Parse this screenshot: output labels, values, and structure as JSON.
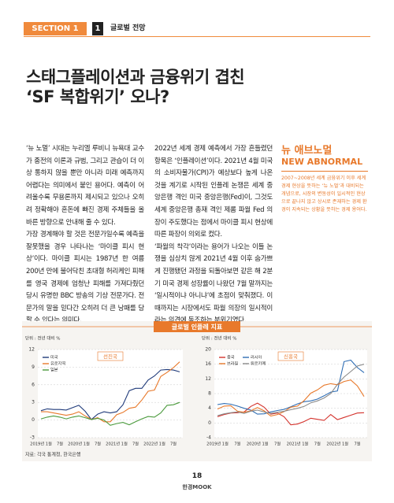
{
  "header": {
    "section": "SECTION 1",
    "number": "1",
    "label": "글로벌 전망"
  },
  "title": [
    "스태그플레이션과 금융위기 겹친",
    "‘SF 복합위기’ 오나?"
  ],
  "body": {
    "column1": [
      "‘뉴 노멀’ 시대는 누리엘 루비니 뉴욕대 교수가 종전의 이론과 규범, 그리고 관습이 더 이상 통하지 않을 뿐만 아니라 미래 예측까지 어렵다는 의미에서 붙인 용어다. 예측이 어려울수록 무용론까지 제시되고 있으나 오히려 정확해야 혼돈에 빠진 경제 주체들을 올바른 방향으로 안내해 줄 수 있다.",
      "가장 경계해야 할 것은 전문가일수록 예측을 잘못했을 경우 나타나는 ‘마이클 피시 현상’이다. 마이클 피시는 1987년 한 여름 200년 만에 불어닥친 초대형 허리케인 피해를 영국 경제에 엄청난 피해를 가져다줬던 당시 유명한 BBC 방송의 기상 전문가다. 전문가의 말을 믿다간 오히려 더 큰 낭패를 당할 수 있다는 의미다."
    ],
    "column2": [
      "2022년 세계 경제 예측에서 가장 흔들렸던 항목은 ‘인플레이션’이다. 2021년 4월 미국의 소비자물가(CPI)가 예상보다 높게 나온 것을 계기로 시작된 인플레 논쟁은 세계 중앙은행 격인 미국 중앙은행(Fed)이, 그것도 세계 중앙은행 총재 격인 제롬 파월 Fed 의장이 주도했다는 점에서 마이클 피시 현상에 따른 파장이 의외로 컸다.",
      "‘파월의 착각’이라는 용어가 나오는 이들 논쟁을 심상치 않게 2021년 4월 이후 숨가쁘게 진행됐던 과정을 되돌아보면 같은 해 2분기 미국 경제 성장률이 나왔던 7월 말까지는 ‘일시적이냐 아니냐’에 초점이 맞춰졌다. 이때까지는 시장에서도 파월 의장의 일시적이라는 의견에 동조하는 분위기였다."
    ]
  },
  "sidebar": {
    "title": "뉴 애브노멀",
    "subtitle": "NEW ABNORMAL",
    "text": "2007~2008년 세계 금융위기 이후 세계경제 현상을 뜻하는 ‘뉴 노멀’과 대비되는 개념으로, 시장의 변동성이 일시적인 현상으로 끝나지 않고 상시로 존재하는 경제 환경이 지속되는 상황을 뜻하는 경제 용어다."
  },
  "figure": {
    "title": "글로벌 인플레 지표",
    "source": "자료: 각국 통계청, 한국은행"
  },
  "chart_data": [
    {
      "type": "line",
      "title": "선진국",
      "unit": "단위 : 전년 대비 %",
      "categories": [
        "2019년 1월",
        null,
        null,
        "7월",
        null,
        null,
        "2020년 1월",
        null,
        null,
        "7월",
        null,
        null,
        "2021년 1월",
        null,
        null,
        "7월",
        null,
        null,
        "2022년 1월",
        null,
        null,
        "7월",
        null
      ],
      "ylim": [
        -3,
        12
      ],
      "yticks": [
        12,
        9,
        6,
        3,
        0,
        -3
      ],
      "grid": true,
      "legend": "upper left",
      "series": [
        {
          "name": "미국",
          "color": "#1f3a7a",
          "values": [
            1.6,
            1.9,
            1.8,
            1.8,
            1.7,
            2.1,
            2.5,
            1.5,
            0.1,
            1.0,
            1.4,
            1.2,
            1.4,
            2.6,
            5.0,
            5.4,
            5.4,
            6.8,
            7.5,
            8.5,
            8.6,
            8.5,
            8.2
          ]
        },
        {
          "name": "유로지역",
          "color": "#e8792b",
          "values": [
            1.4,
            1.4,
            1.2,
            1.0,
            0.8,
            1.0,
            1.4,
            0.7,
            0.1,
            0.4,
            -0.3,
            -0.3,
            0.9,
            1.3,
            2.0,
            2.2,
            3.4,
            4.9,
            5.1,
            7.4,
            8.1,
            8.9,
            9.9
          ]
        },
        {
          "name": "일본",
          "color": "#4a9a3c",
          "values": [
            0.2,
            0.5,
            0.7,
            0.5,
            0.2,
            0.5,
            0.7,
            0.4,
            0.1,
            0.3,
            0.0,
            -0.9,
            -0.6,
            -0.4,
            -0.8,
            -0.3,
            0.2,
            0.6,
            0.5,
            1.2,
            2.5,
            2.6,
            3.0
          ]
        }
      ]
    },
    {
      "type": "line",
      "title": "신흥국",
      "unit": "단위 : 전년 대비 %",
      "categories": [
        "2019년 1월",
        null,
        null,
        "7월",
        null,
        null,
        "2020년 1월",
        null,
        null,
        "7월",
        null,
        null,
        "2021년 1월",
        null,
        null,
        "7월",
        null,
        null,
        "2022년 1월",
        null,
        null,
        "7월",
        null
      ],
      "ylim": [
        -4,
        20
      ],
      "yticks": [
        20,
        16,
        12,
        8,
        4,
        0,
        -4
      ],
      "grid": true,
      "legend": "upper left",
      "series": [
        {
          "name": "중국",
          "color": "#d4322c",
          "values": [
            1.7,
            2.3,
            2.7,
            2.8,
            3.0,
            4.5,
            5.4,
            4.3,
            2.4,
            2.7,
            1.7,
            -0.5,
            -0.3,
            0.4,
            1.3,
            1.0,
            0.7,
            2.3,
            0.9,
            1.5,
            2.1,
            2.7,
            2.8
          ]
        },
        {
          "name": "러시아",
          "color": "#2e6db4",
          "values": [
            5.0,
            5.3,
            5.1,
            4.6,
            4.0,
            3.5,
            2.4,
            2.5,
            3.0,
            3.4,
            3.7,
            4.4,
            5.2,
            5.8,
            6.0,
            6.5,
            7.4,
            8.4,
            8.7,
            16.7,
            17.1,
            15.1,
            13.7
          ]
        },
        {
          "name": "브라질",
          "color": "#e8792b",
          "values": [
            3.8,
            4.6,
            4.7,
            3.2,
            2.9,
            3.3,
            4.2,
            3.3,
            1.9,
            2.3,
            3.1,
            4.3,
            4.6,
            6.1,
            8.1,
            9.0,
            10.3,
            10.7,
            10.4,
            11.3,
            11.7,
            10.1,
            7.2
          ]
        },
        {
          "name": "튀르키예",
          "color": "#8a8a8a",
          "values": [
            2.0,
            2.5,
            2.8,
            3.0,
            2.6,
            3.2,
            3.5,
            3.0,
            2.6,
            2.9,
            3.2,
            3.6,
            4.0,
            4.5,
            5.5,
            6.0,
            6.8,
            8.0,
            10.5,
            12.5,
            14.0,
            15.5,
            16.0
          ]
        }
      ]
    }
  ],
  "footer": {
    "page": "18",
    "brand": "한경MOOK"
  }
}
